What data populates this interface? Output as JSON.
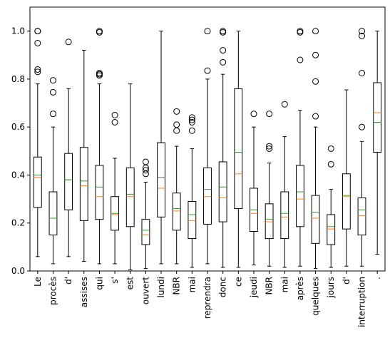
{
  "chart_data": {
    "type": "boxplot",
    "categories": [
      "Le",
      "procès",
      "d'",
      "assises",
      "qui",
      "s'",
      "est",
      "ouvert",
      "lundi",
      "NBR",
      "mai",
      "reprendra",
      "donc",
      "ce",
      "jeudi",
      "NBR",
      "mai",
      "après",
      "quelques",
      "jours",
      "d'",
      "interruption",
      "."
    ],
    "ylim": [
      0,
      1.1
    ],
    "yticks": [
      "0.0",
      "0.2",
      "0.4",
      "0.6",
      "0.8",
      "1.0"
    ],
    "ytick_values": [
      0,
      0.2,
      0.4,
      0.6,
      0.8,
      1.0
    ],
    "grid": false,
    "colors": {
      "box": "#000000",
      "median": "#ff7f0e",
      "mean": "#2ca02c"
    },
    "boxes": [
      {
        "whislo": 0.06,
        "q1": 0.265,
        "med": 0.39,
        "mean": 0.4,
        "q3": 0.475,
        "whishi": 0.78,
        "fliers": [
          0.83,
          0.84,
          0.95,
          1.0,
          1.0
        ]
      },
      {
        "whislo": 0.03,
        "q1": 0.15,
        "med": 0.22,
        "mean": 0.22,
        "q3": 0.33,
        "whishi": 0.6,
        "fliers": [
          0.655,
          0.745,
          0.795
        ]
      },
      {
        "whislo": 0.06,
        "q1": 0.255,
        "med": 0.38,
        "mean": 0.38,
        "q3": 0.49,
        "whishi": 0.76,
        "fliers": [
          0.955
        ]
      },
      {
        "whislo": 0.04,
        "q1": 0.21,
        "med": 0.355,
        "mean": 0.375,
        "q3": 0.515,
        "whishi": 0.92,
        "fliers": []
      },
      {
        "whislo": 0.03,
        "q1": 0.215,
        "med": 0.31,
        "mean": 0.35,
        "q3": 0.44,
        "whishi": 0.78,
        "fliers": [
          0.815,
          0.82,
          0.825,
          0.995,
          1.0
        ]
      },
      {
        "whislo": 0.03,
        "q1": 0.17,
        "med": 0.235,
        "mean": 0.24,
        "q3": 0.31,
        "whishi": 0.47,
        "fliers": [
          0.62,
          0.65
        ]
      },
      {
        "whislo": 0.005,
        "q1": 0.185,
        "med": 0.31,
        "mean": 0.32,
        "q3": 0.43,
        "whishi": 0.78,
        "fliers": []
      },
      {
        "whislo": 0.01,
        "q1": 0.11,
        "med": 0.15,
        "mean": 0.17,
        "q3": 0.215,
        "whishi": 0.37,
        "fliers": [
          0.405,
          0.42,
          0.43,
          0.455
        ]
      },
      {
        "whislo": 0.03,
        "q1": 0.225,
        "med": 0.345,
        "mean": 0.39,
        "q3": 0.535,
        "whishi": 1.0,
        "fliers": []
      },
      {
        "whislo": 0.03,
        "q1": 0.17,
        "med": 0.25,
        "mean": 0.26,
        "q3": 0.325,
        "whishi": 0.52,
        "fliers": [
          0.585,
          0.61,
          0.665
        ]
      },
      {
        "whislo": 0.015,
        "q1": 0.135,
        "med": 0.21,
        "mean": 0.235,
        "q3": 0.29,
        "whishi": 0.51,
        "fliers": [
          0.585,
          0.62,
          0.63,
          0.64
        ]
      },
      {
        "whislo": 0.03,
        "q1": 0.195,
        "med": 0.31,
        "mean": 0.34,
        "q3": 0.43,
        "whishi": 0.8,
        "fliers": [
          0.835,
          1.0
        ]
      },
      {
        "whislo": 0.015,
        "q1": 0.205,
        "med": 0.305,
        "mean": 0.35,
        "q3": 0.455,
        "whishi": 0.82,
        "fliers": [
          0.87,
          0.92,
          0.995,
          1.0
        ]
      },
      {
        "whislo": 0.015,
        "q1": 0.26,
        "med": 0.405,
        "mean": 0.495,
        "q3": 0.76,
        "whishi": 1.0,
        "fliers": []
      },
      {
        "whislo": 0.025,
        "q1": 0.165,
        "med": 0.24,
        "mean": 0.255,
        "q3": 0.345,
        "whishi": 0.6,
        "fliers": [
          0.655
        ]
      },
      {
        "whislo": 0.02,
        "q1": 0.135,
        "med": 0.205,
        "mean": 0.215,
        "q3": 0.28,
        "whishi": 0.45,
        "fliers": [
          0.51,
          0.52,
          0.655
        ]
      },
      {
        "whislo": 0.015,
        "q1": 0.135,
        "med": 0.225,
        "mean": 0.24,
        "q3": 0.33,
        "whishi": 0.56,
        "fliers": [
          0.695
        ]
      },
      {
        "whislo": 0.02,
        "q1": 0.185,
        "med": 0.3,
        "mean": 0.33,
        "q3": 0.44,
        "whishi": 0.67,
        "fliers": [
          0.88,
          0.995,
          1.0
        ]
      },
      {
        "whislo": 0.01,
        "q1": 0.115,
        "med": 0.22,
        "mean": 0.245,
        "q3": 0.315,
        "whishi": 0.6,
        "fliers": [
          0.645,
          0.79,
          0.9,
          1.0
        ]
      },
      {
        "whislo": 0.015,
        "q1": 0.11,
        "med": 0.175,
        "mean": 0.185,
        "q3": 0.235,
        "whishi": 0.34,
        "fliers": [
          0.445,
          0.51
        ]
      },
      {
        "whislo": 0.02,
        "q1": 0.175,
        "med": 0.31,
        "mean": 0.315,
        "q3": 0.405,
        "whishi": 0.755,
        "fliers": []
      },
      {
        "whislo": 0.02,
        "q1": 0.15,
        "med": 0.23,
        "mean": 0.255,
        "q3": 0.305,
        "whishi": 0.54,
        "fliers": [
          0.6,
          0.825,
          0.98,
          1.0
        ]
      },
      {
        "whislo": 0.07,
        "q1": 0.495,
        "med": 0.66,
        "mean": 0.62,
        "q3": 0.785,
        "whishi": 1.0,
        "fliers": []
      }
    ]
  }
}
